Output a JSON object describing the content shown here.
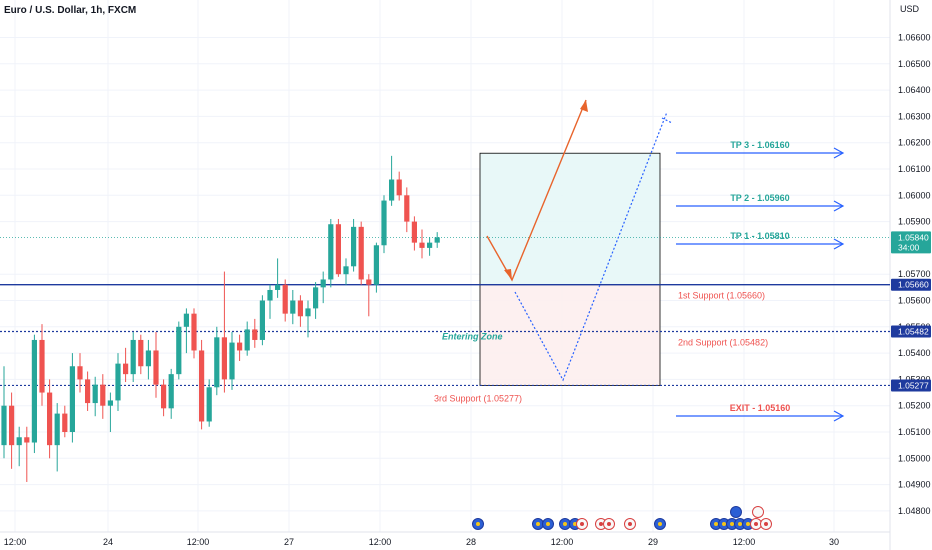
{
  "header": {
    "title": "Euro / U.S. Dollar, 1h, FXCM",
    "currency": "USD"
  },
  "colors": {
    "up": "#26a69a",
    "down": "#ef5350",
    "level_line": "#1e3a9e",
    "tp_text": "#26a69a",
    "support_text": "#ef5350",
    "exit_text": "#ef5350",
    "arrow": "#2962ff",
    "entry_zone_text": "#26a69a",
    "current_price_badge": "#26a69a",
    "level_badge": "#1e3a9e",
    "path_arrow": "#e8642c",
    "dotted_path": "#2962ff"
  },
  "chart_data": {
    "type": "candlestick",
    "title": "Euro / U.S. Dollar, 1h, FXCM",
    "ylim": [
      1.0477,
      1.0677
    ],
    "price_ticks": [
      "1.06600",
      "1.06500",
      "1.06400",
      "1.06300",
      "1.06200",
      "1.06100",
      "1.06000",
      "1.05900",
      "1.05700",
      "1.05600",
      "1.05500",
      "1.05400",
      "1.05300",
      "1.05200",
      "1.05100",
      "1.05000",
      "1.04900",
      "1.04800"
    ],
    "time_ticks": [
      "12:00",
      "24",
      "12:00",
      "27",
      "12:00",
      "28",
      "12:00",
      "29",
      "12:00",
      "30"
    ],
    "current_price": {
      "value": "1.05840",
      "countdown": "34:00"
    },
    "levels": [
      {
        "value": 1.0566,
        "badge": "1.05660",
        "style": "solid"
      },
      {
        "value": 1.05482,
        "badge": "1.05482",
        "style": "dotted"
      },
      {
        "value": 1.05277,
        "badge": "1.05277",
        "style": "dotted"
      }
    ],
    "candles": [
      [
        1.0505,
        1.0535,
        1.05,
        1.052
      ],
      [
        1.052,
        1.0525,
        1.0496,
        1.0505
      ],
      [
        1.0505,
        1.0512,
        1.0497,
        1.0508
      ],
      [
        1.0508,
        1.0512,
        1.0491,
        1.0506
      ],
      [
        1.0506,
        1.0547,
        1.0502,
        1.0545
      ],
      [
        1.0545,
        1.0551,
        1.052,
        1.0525
      ],
      [
        1.0525,
        1.053,
        1.05,
        1.0505
      ],
      [
        1.0505,
        1.0521,
        1.0495,
        1.0517
      ],
      [
        1.0517,
        1.052,
        1.0508,
        1.051
      ],
      [
        1.051,
        1.054,
        1.0506,
        1.0535
      ],
      [
        1.0535,
        1.054,
        1.0525,
        1.053
      ],
      [
        1.053,
        1.0533,
        1.0518,
        1.0521
      ],
      [
        1.0521,
        1.0531,
        1.0516,
        1.0528
      ],
      [
        1.0528,
        1.0532,
        1.0515,
        1.052
      ],
      [
        1.052,
        1.0525,
        1.051,
        1.0522
      ],
      [
        1.0522,
        1.054,
        1.0518,
        1.0536
      ],
      [
        1.0536,
        1.0542,
        1.0529,
        1.0532
      ],
      [
        1.0532,
        1.0548,
        1.0529,
        1.0545
      ],
      [
        1.0545,
        1.0547,
        1.0532,
        1.0535
      ],
      [
        1.0535,
        1.0545,
        1.053,
        1.0541
      ],
      [
        1.0541,
        1.0548,
        1.0523,
        1.0528
      ],
      [
        1.0528,
        1.053,
        1.0516,
        1.0519
      ],
      [
        1.0519,
        1.0534,
        1.0515,
        1.0532
      ],
      [
        1.0532,
        1.0552,
        1.053,
        1.055
      ],
      [
        1.055,
        1.0557,
        1.054,
        1.0555
      ],
      [
        1.0555,
        1.0557,
        1.0538,
        1.0541
      ],
      [
        1.0541,
        1.0545,
        1.0511,
        1.0514
      ],
      [
        1.0514,
        1.053,
        1.0512,
        1.0527
      ],
      [
        1.0527,
        1.055,
        1.0524,
        1.0546
      ],
      [
        1.0546,
        1.0571,
        1.0525,
        1.053
      ],
      [
        1.053,
        1.0548,
        1.0526,
        1.0544
      ],
      [
        1.0544,
        1.0547,
        1.0537,
        1.0541
      ],
      [
        1.0541,
        1.0552,
        1.0539,
        1.0549
      ],
      [
        1.0549,
        1.0553,
        1.0542,
        1.0545
      ],
      [
        1.0545,
        1.0562,
        1.0543,
        1.056
      ],
      [
        1.056,
        1.0566,
        1.0553,
        1.0564
      ],
      [
        1.0564,
        1.0576,
        1.0561,
        1.0566
      ],
      [
        1.0566,
        1.0568,
        1.0552,
        1.0555
      ],
      [
        1.0555,
        1.0564,
        1.0551,
        1.056
      ],
      [
        1.056,
        1.0562,
        1.055,
        1.0554
      ],
      [
        1.0554,
        1.056,
        1.0546,
        1.0557
      ],
      [
        1.0557,
        1.0567,
        1.0553,
        1.0565
      ],
      [
        1.0565,
        1.0571,
        1.0559,
        1.0568
      ],
      [
        1.0568,
        1.0591,
        1.0565,
        1.0589
      ],
      [
        1.0589,
        1.0591,
        1.0569,
        1.057
      ],
      [
        1.057,
        1.0576,
        1.0566,
        1.0573
      ],
      [
        1.0573,
        1.0591,
        1.0571,
        1.0588
      ],
      [
        1.0588,
        1.059,
        1.0566,
        1.0568
      ],
      [
        1.0568,
        1.057,
        1.0554,
        1.0566
      ],
      [
        1.0566,
        1.0582,
        1.0563,
        1.0581
      ],
      [
        1.0581,
        1.06,
        1.0578,
        1.0598
      ],
      [
        1.0598,
        1.0615,
        1.0596,
        1.0606
      ],
      [
        1.0606,
        1.0609,
        1.0598,
        1.06
      ],
      [
        1.06,
        1.0603,
        1.0586,
        1.059
      ],
      [
        1.059,
        1.0592,
        1.0579,
        1.0582
      ],
      [
        1.0582,
        1.0587,
        1.0576,
        1.058
      ],
      [
        1.058,
        1.0584,
        1.0577,
        1.0582
      ],
      [
        1.0582,
        1.0586,
        1.058,
        1.0584
      ]
    ],
    "zone": {
      "label": "Entering Zone",
      "top": 1.0616,
      "mid": 1.0566,
      "bottom": 1.05277
    },
    "targets": [
      {
        "label": "TP 3 - 1.06160",
        "value": 1.0616,
        "kind": "tp"
      },
      {
        "label": "TP 2 - 1.05960",
        "value": 1.0596,
        "kind": "tp"
      },
      {
        "label": "TP 1 - 1.05810",
        "value": 1.0581,
        "kind": "tp"
      },
      {
        "label": "EXIT - 1.05160",
        "value": 1.0516,
        "kind": "exit"
      }
    ],
    "support_labels": [
      {
        "label": "1st Support (1.05660)",
        "value": 1.0566
      },
      {
        "label": "2nd Support (1.05482)",
        "value": 1.05482
      },
      {
        "label": "3rd Support (1.05277)",
        "value": 1.05277
      }
    ]
  }
}
